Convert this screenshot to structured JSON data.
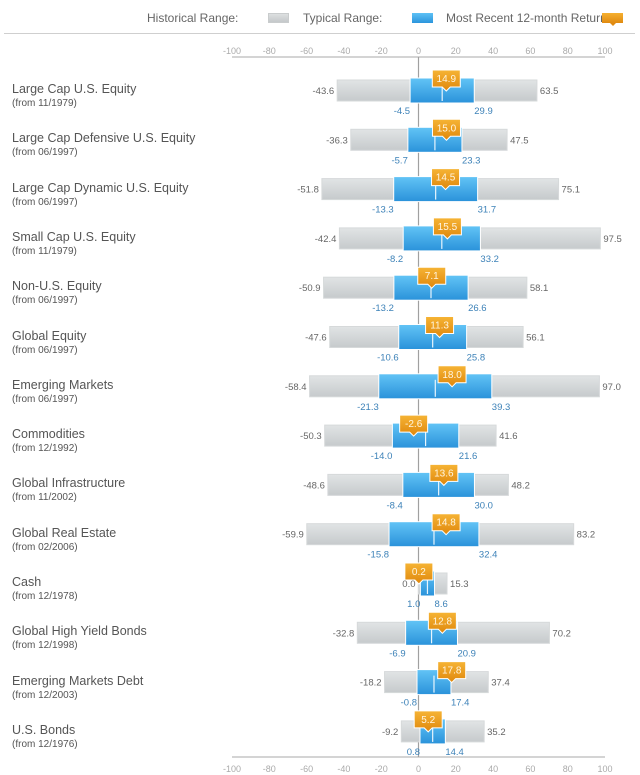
{
  "legend": {
    "historical_label": "Historical Range:",
    "typical_label": "Typical Range:",
    "recent_label": "Most Recent 12-month Return:"
  },
  "colors": {
    "historical": "#cfd2d4",
    "typical": "#3aa6e8",
    "recent": "#ec9a1c",
    "typical_text": "#3d82b8",
    "axis": "#9a9a9a"
  },
  "chart_data": {
    "type": "range-bar",
    "title": "",
    "xlabel": "",
    "ylabel": "",
    "xlim": [
      -100,
      100
    ],
    "x_ticks": [
      -100,
      -80,
      -60,
      -40,
      -20,
      0,
      20,
      40,
      60,
      80,
      100
    ],
    "grid": false,
    "legend_position": "top-right",
    "series_names": [
      "Historical Range",
      "Typical Range",
      "Most Recent 12-month Return"
    ],
    "rows": [
      {
        "name": "Large Cap U.S. Equity",
        "since": "(from 11/1979)",
        "hist_min": -43.6,
        "hist_max": 63.5,
        "typ_min": -4.5,
        "typ_max": 29.9,
        "recent": 14.9,
        "recent_label": "14.9"
      },
      {
        "name": "Large Cap Defensive U.S. Equity",
        "since": "(from 06/1997)",
        "hist_min": -36.3,
        "hist_max": 47.5,
        "typ_min": -5.7,
        "typ_max": 23.3,
        "recent": 15.0,
        "recent_label": "15.0"
      },
      {
        "name": "Large Cap Dynamic U.S. Equity",
        "since": "(from 06/1997)",
        "hist_min": -51.8,
        "hist_max": 75.1,
        "typ_min": -13.3,
        "typ_max": 31.7,
        "recent": 14.5,
        "recent_label": "14.5"
      },
      {
        "name": "Small Cap U.S. Equity",
        "since": "(from 11/1979)",
        "hist_min": -42.4,
        "hist_max": 97.5,
        "typ_min": -8.2,
        "typ_max": 33.2,
        "recent": 15.5,
        "recent_label": "15.5"
      },
      {
        "name": "Non-U.S. Equity",
        "since": "(from 06/1997)",
        "hist_min": -50.9,
        "hist_max": 58.1,
        "typ_min": -13.2,
        "typ_max": 26.6,
        "recent": 7.1,
        "recent_label": "7.1"
      },
      {
        "name": "Global Equity",
        "since": "(from 06/1997)",
        "hist_min": -47.6,
        "hist_max": 56.1,
        "typ_min": -10.6,
        "typ_max": 25.8,
        "recent": 11.3,
        "recent_label": "11.3"
      },
      {
        "name": "Emerging Markets",
        "since": "(from 06/1997)",
        "hist_min": -58.4,
        "hist_max": 97.0,
        "typ_min": -21.3,
        "typ_max": 39.3,
        "recent": 18.0,
        "recent_label": "18.0"
      },
      {
        "name": "Commodities",
        "since": "(from 12/1992)",
        "hist_min": -50.3,
        "hist_max": 41.6,
        "typ_min": -14.0,
        "typ_max": 21.6,
        "recent": -2.6,
        "recent_label": "-2.6"
      },
      {
        "name": "Global Infrastructure",
        "since": "(from 11/2002)",
        "hist_min": -48.6,
        "hist_max": 48.2,
        "typ_min": -8.4,
        "typ_max": 30.0,
        "recent": 13.6,
        "recent_label": "13.6"
      },
      {
        "name": "Global Real Estate",
        "since": "(from 02/2006)",
        "hist_min": -59.9,
        "hist_max": 83.2,
        "typ_min": -15.8,
        "typ_max": 32.4,
        "recent": 14.8,
        "recent_label": "14.8"
      },
      {
        "name": "Cash",
        "since": "(from 12/1978)",
        "hist_min": 0.0,
        "hist_max": 15.3,
        "typ_min": 1.0,
        "typ_max": 8.6,
        "recent": 0.2,
        "recent_label": "0.2"
      },
      {
        "name": "Global High Yield Bonds",
        "since": "(from 12/1998)",
        "hist_min": -32.8,
        "hist_max": 70.2,
        "typ_min": -6.9,
        "typ_max": 20.9,
        "recent": 12.8,
        "recent_label": "12.8"
      },
      {
        "name": "Emerging Markets Debt",
        "since": "(from 12/2003)",
        "hist_min": -18.2,
        "hist_max": 37.4,
        "typ_min": -0.8,
        "typ_max": 17.4,
        "recent": 17.8,
        "recent_label": "17.8"
      },
      {
        "name": "U.S. Bonds",
        "since": "(from 12/1976)",
        "hist_min": -9.2,
        "hist_max": 35.2,
        "typ_min": 0.8,
        "typ_max": 14.4,
        "recent": 5.2,
        "recent_label": "5.2"
      }
    ]
  }
}
